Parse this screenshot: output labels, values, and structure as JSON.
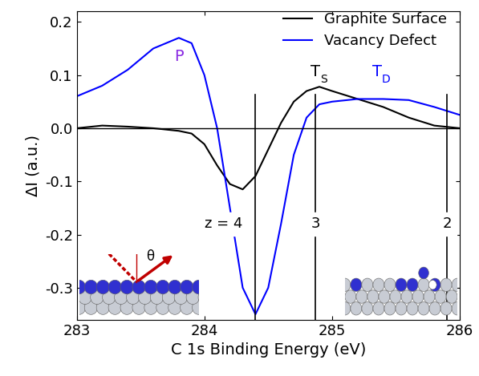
{
  "chart_data": {
    "type": "line",
    "x_label": "C 1s Binding Energy (eV)",
    "y_label": "ΔI (a.u.)",
    "x": [
      283.0,
      283.2,
      283.4,
      283.6,
      283.8,
      283.9,
      284.0,
      284.1,
      284.2,
      284.3,
      284.4,
      284.5,
      284.6,
      284.7,
      284.8,
      284.9,
      285.0,
      285.2,
      285.4,
      285.6,
      285.8,
      286.0
    ],
    "series": [
      {
        "name": "Graphite Surface",
        "color": "#000000",
        "values": [
          0.0,
          0.005,
          0.003,
          0.0,
          -0.005,
          -0.01,
          -0.03,
          -0.07,
          -0.105,
          -0.115,
          -0.09,
          -0.04,
          0.01,
          0.05,
          0.07,
          0.078,
          0.07,
          0.055,
          0.04,
          0.02,
          0.005,
          0.0
        ]
      },
      {
        "name": "Vacancy Defect",
        "color": "#0000ff",
        "values": [
          0.06,
          0.08,
          0.11,
          0.15,
          0.17,
          0.16,
          0.1,
          0.0,
          -0.15,
          -0.3,
          -0.35,
          -0.3,
          -0.18,
          -0.05,
          0.02,
          0.045,
          0.05,
          0.055,
          0.055,
          0.053,
          0.04,
          0.025
        ]
      }
    ],
    "xlim": [
      283,
      286
    ],
    "xticks": [
      283,
      284,
      285,
      286
    ],
    "ylim": [
      -0.36,
      0.22
    ],
    "yticks": [
      -0.3,
      -0.2,
      -0.1,
      0.0,
      0.1,
      0.2
    ],
    "legend": "upper right",
    "zero_line": 0,
    "vertical_lines": [
      {
        "x": 284.4,
        "label": "z = 4",
        "label_x": 284.15,
        "label_y": -0.18
      },
      {
        "x": 284.87,
        "label": "3",
        "label_x": 284.87,
        "label_y": -0.18
      },
      {
        "x": 285.9,
        "label": "2",
        "label_x": 285.9,
        "label_y": -0.18
      }
    ],
    "annotations": [
      {
        "text": "P",
        "subscript": "",
        "x": 283.8,
        "y": 0.12,
        "color": "#8a2be2"
      },
      {
        "text": "T",
        "subscript": "S",
        "x": 284.87,
        "y": 0.092,
        "color": "#000000"
      },
      {
        "text": "T",
        "subscript": "D",
        "x": 285.35,
        "y": 0.092,
        "color": "#0000ff"
      }
    ],
    "inset_label": "θ"
  }
}
